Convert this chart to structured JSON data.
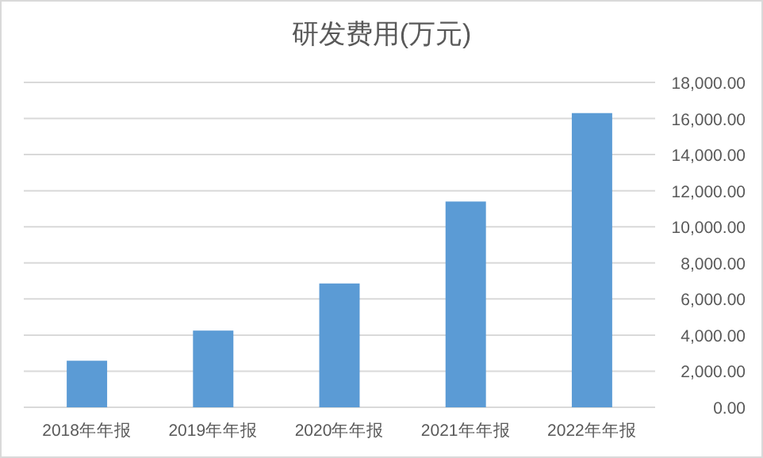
{
  "chart_data": {
    "type": "bar",
    "title": "研发费用(万元)",
    "categories": [
      "2018年年报",
      "2019年年报",
      "2020年年报",
      "2021年年报",
      "2022年年报"
    ],
    "values": [
      2580,
      4250,
      6860,
      11400,
      16300
    ],
    "color": "#5b9bd5",
    "ylim": [
      0,
      18000
    ],
    "yticks": [
      {
        "value": 0,
        "label": "0.00"
      },
      {
        "value": 2000,
        "label": "2,000.00"
      },
      {
        "value": 4000,
        "label": "4,000.00"
      },
      {
        "value": 6000,
        "label": "6,000.00"
      },
      {
        "value": 8000,
        "label": "8,000.00"
      },
      {
        "value": 10000,
        "label": "10,000.00"
      },
      {
        "value": 12000,
        "label": "12,000.00"
      },
      {
        "value": 14000,
        "label": "14,000.00"
      },
      {
        "value": 16000,
        "label": "16,000.00"
      },
      {
        "value": 18000,
        "label": "18,000.00"
      }
    ],
    "grid": "y"
  }
}
